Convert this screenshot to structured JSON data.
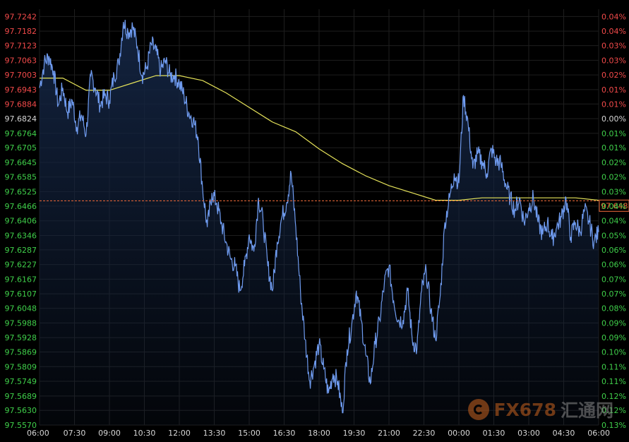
{
  "chart_data": {
    "type": "line",
    "title": "",
    "xlabel": "",
    "ylabel": "",
    "ylim": [
      97.557,
      97.7272
    ],
    "reference_price": 97.6824,
    "current_price": 97.6488,
    "current_price_label": "97.6488",
    "y_ticks": [
      "97.7242",
      "97.7182",
      "97.7123",
      "97.7063",
      "97.7003",
      "97.6943",
      "97.6884",
      "97.6824",
      "97.6764",
      "97.6705",
      "97.6645",
      "97.6585",
      "97.6525",
      "97.6466",
      "97.6406",
      "97.6346",
      "97.6287",
      "97.6227",
      "97.6167",
      "97.6107",
      "97.6048",
      "97.5988",
      "97.5928",
      "97.5869",
      "97.5809",
      "97.5749",
      "97.5689",
      "97.5630",
      "97.5570"
    ],
    "pct_ticks": [
      "0.04%",
      "0.04%",
      "0.03%",
      "0.03%",
      "0.02%",
      "0.01%",
      "0.01%",
      "0.00%",
      "0.01%",
      "0.01%",
      "0.02%",
      "0.02%",
      "0.03%",
      "0.04%",
      "0.04%",
      "0.05%",
      "0.06%",
      "0.06%",
      "0.07%",
      "0.07%",
      "0.08%",
      "0.09%",
      "0.09%",
      "0.10%",
      "0.11%",
      "0.11%",
      "0.12%",
      "0.12%",
      "0.13%"
    ],
    "x_ticks": [
      "06:00",
      "07:30",
      "09:00",
      "10:30",
      "12:00",
      "13:30",
      "15:00",
      "16:30",
      "18:00",
      "19:30",
      "21:00",
      "22:30",
      "00:00",
      "01:30",
      "03:00",
      "04:30",
      "06:00"
    ],
    "x_range_hours": [
      0,
      24
    ],
    "grid": true,
    "colors": {
      "background": "#000000",
      "grid": "#1e1e1e",
      "price_line": "#6f9bef",
      "area_fill": "#13233f",
      "moving_average": "#e6e35a",
      "axis_text": "#d6d6d6",
      "up_text": "#f24a4a",
      "down_text": "#3fcf4a",
      "current_marker": "#f26b3a"
    },
    "series": [
      {
        "kind": "price",
        "x": [
          0.0,
          0.2,
          0.4,
          0.6,
          0.8,
          1.0,
          1.2,
          1.4,
          1.6,
          1.8,
          2.0,
          2.2,
          2.4,
          2.6,
          2.8,
          3.0,
          3.2,
          3.4,
          3.6,
          3.8,
          4.0,
          4.2,
          4.4,
          4.6,
          4.8,
          5.0,
          5.2,
          5.4,
          5.6,
          5.8,
          6.0,
          6.2,
          6.4,
          6.6,
          6.8,
          7.0,
          7.2,
          7.4,
          7.6,
          7.8,
          8.0,
          8.2,
          8.4,
          8.6,
          8.8,
          9.0,
          9.2,
          9.4,
          9.6,
          9.8,
          10.0,
          10.2,
          10.4,
          10.6,
          10.8,
          11.0,
          11.2,
          11.4,
          11.6,
          11.8,
          12.0,
          12.2,
          12.4,
          12.6,
          12.8,
          13.0,
          13.2,
          13.4,
          13.6,
          13.8,
          14.0,
          14.2,
          14.4,
          14.6,
          14.8,
          15.0,
          15.2,
          15.4,
          15.6,
          15.8,
          16.0,
          16.2,
          16.4,
          16.6,
          16.8,
          17.0,
          17.2,
          17.4,
          17.6,
          17.8,
          18.0,
          18.2,
          18.4,
          18.6,
          18.8,
          19.0,
          19.2,
          19.4,
          19.6,
          19.8,
          20.0,
          20.2,
          20.4,
          20.6,
          20.8,
          21.0,
          21.2,
          21.4,
          21.6,
          21.8,
          22.0,
          22.2,
          22.4,
          22.6,
          22.8,
          23.0,
          23.2,
          23.4,
          23.6,
          23.8,
          24.0
        ],
        "values": [
          97.695,
          97.705,
          97.708,
          97.702,
          97.688,
          97.695,
          97.685,
          97.69,
          97.679,
          97.684,
          97.676,
          97.7,
          97.695,
          97.688,
          97.692,
          97.69,
          97.7,
          97.705,
          97.722,
          97.718,
          97.72,
          97.712,
          97.7,
          97.703,
          97.713,
          97.71,
          97.702,
          97.706,
          97.7,
          97.7,
          97.697,
          97.692,
          97.685,
          97.682,
          97.675,
          97.654,
          97.638,
          97.652,
          97.648,
          97.64,
          97.632,
          97.625,
          97.622,
          97.612,
          97.622,
          97.635,
          97.628,
          97.65,
          97.64,
          97.622,
          97.612,
          97.632,
          97.642,
          97.648,
          97.66,
          97.638,
          97.612,
          97.592,
          97.575,
          97.582,
          97.59,
          97.58,
          97.57,
          97.578,
          97.575,
          97.562,
          97.588,
          97.598,
          97.612,
          97.6,
          97.586,
          97.574,
          97.59,
          97.6,
          97.615,
          97.622,
          97.608,
          97.6,
          97.6,
          97.612,
          97.592,
          97.588,
          97.612,
          97.62,
          97.604,
          97.592,
          97.61,
          97.64,
          97.65,
          97.66,
          97.656,
          97.692,
          97.68,
          97.662,
          97.668,
          97.665,
          97.66,
          97.67,
          97.665,
          97.664,
          97.656,
          97.65,
          97.645,
          97.65,
          97.64,
          97.646,
          97.65,
          97.64,
          97.635,
          97.64,
          97.633,
          97.638,
          97.642,
          97.65,
          97.634,
          97.64,
          97.636,
          97.645,
          97.64,
          97.632,
          97.636
        ]
      },
      {
        "kind": "moving_average",
        "x": [
          0.0,
          1.0,
          2.0,
          3.0,
          4.0,
          5.0,
          6.0,
          7.0,
          8.0,
          9.0,
          10.0,
          11.0,
          12.0,
          13.0,
          14.0,
          15.0,
          16.0,
          17.0,
          18.0,
          19.0,
          20.0,
          21.0,
          22.0,
          23.0,
          24.0
        ],
        "values": [
          97.699,
          97.699,
          97.694,
          97.694,
          97.697,
          97.7,
          97.7,
          97.698,
          97.693,
          97.687,
          97.681,
          97.677,
          97.67,
          97.664,
          97.659,
          97.655,
          97.652,
          97.649,
          97.649,
          97.65,
          97.65,
          97.65,
          97.65,
          97.65,
          97.649
        ]
      }
    ]
  },
  "watermark": {
    "brand_text": "FX678",
    "cn_text": "汇通网"
  }
}
